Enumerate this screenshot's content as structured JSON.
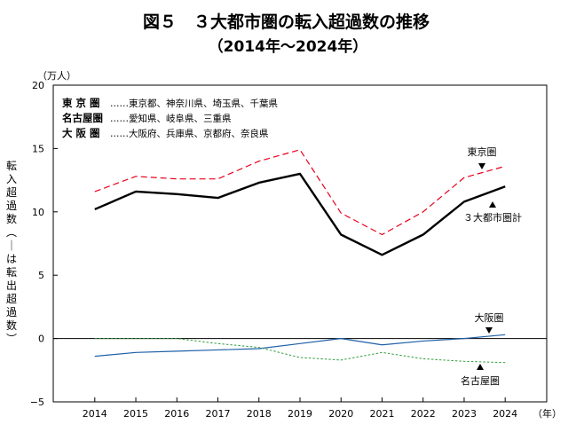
{
  "header": {
    "title": "図５　３大都市圏の転入超過数の推移",
    "subtitle": "（2014年〜2024年）"
  },
  "chart_data": {
    "type": "line",
    "title": "図５　３大都市圏の転入超過数の推移",
    "subtitle": "（2014年〜2024年）",
    "ylabel": "転入超過数（－は転出超過数）",
    "yunit": "（万人）",
    "xunit": "（年）",
    "x": [
      "2014",
      "2015",
      "2016",
      "2017",
      "2018",
      "2019",
      "2020",
      "2021",
      "2022",
      "2023",
      "2024"
    ],
    "ylim": [
      -5,
      20
    ],
    "yticks": [
      -5,
      0,
      5,
      10,
      15,
      20
    ],
    "series": [
      {
        "name": "東京圏",
        "style": "dashed",
        "color": "#e8001c",
        "values": [
          11.6,
          12.8,
          12.6,
          12.6,
          14.0,
          14.9,
          9.9,
          8.2,
          10.0,
          12.7,
          13.6
        ]
      },
      {
        "name": "３大都市圏計",
        "style": "solid-bold",
        "color": "#000000",
        "values": [
          10.2,
          11.6,
          11.4,
          11.1,
          12.3,
          13.0,
          8.2,
          6.6,
          8.2,
          10.8,
          12.0
        ]
      },
      {
        "name": "大阪圏",
        "style": "solid",
        "color": "#1f5fa8",
        "values": [
          -1.4,
          -1.1,
          -1.0,
          -0.9,
          -0.8,
          -0.4,
          0.0,
          -0.5,
          -0.2,
          0.0,
          0.3
        ]
      },
      {
        "name": "名古屋圏",
        "style": "dotted",
        "color": "#2e9e3e",
        "values": [
          0.0,
          0.0,
          0.0,
          -0.4,
          -0.7,
          -1.5,
          -1.7,
          -1.1,
          -1.6,
          -1.8,
          -1.9
        ]
      }
    ],
    "legend": [
      {
        "name": "東 京 圏",
        "members": "……東京都、神奈川県、埼玉県、千葉県"
      },
      {
        "name": "名古屋圏",
        "members": "……愛知県、岐阜県、三重県"
      },
      {
        "name": "大 阪 圏",
        "members": "……大阪府、兵庫県、京都府、奈良県"
      }
    ],
    "annotations": [
      {
        "series": "東京圏",
        "text": "東京圏",
        "arrow": "down"
      },
      {
        "series": "３大都市圏計",
        "text": "３大都市圏計",
        "arrow": "up"
      },
      {
        "series": "大阪圏",
        "text": "大阪圏",
        "arrow": "down"
      },
      {
        "series": "名古屋圏",
        "text": "名古屋圏",
        "arrow": "up"
      }
    ],
    "grid": false,
    "legend_placement": "top-left"
  }
}
